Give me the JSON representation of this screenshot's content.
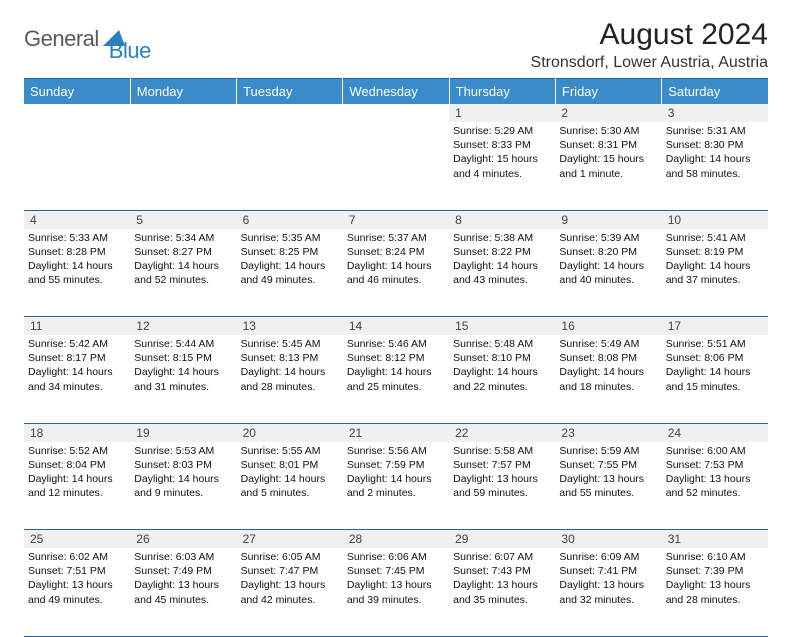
{
  "logo": {
    "general": "General",
    "blue": "Blue"
  },
  "title": "August 2024",
  "location": "Stronsdorf, Lower Austria, Austria",
  "colors": {
    "header_bg": "#3a8bc9",
    "header_text": "#ffffff",
    "border": "#2860a0",
    "daynum_bg": "#eef0f2",
    "logo_gray": "#5a5a5a",
    "logo_blue": "#2d7fc1"
  },
  "days_of_week": [
    "Sunday",
    "Monday",
    "Tuesday",
    "Wednesday",
    "Thursday",
    "Friday",
    "Saturday"
  ],
  "weeks": [
    [
      null,
      null,
      null,
      null,
      {
        "n": "1",
        "sr": "5:29 AM",
        "ss": "8:33 PM",
        "dl": "15 hours and 4 minutes."
      },
      {
        "n": "2",
        "sr": "5:30 AM",
        "ss": "8:31 PM",
        "dl": "15 hours and 1 minute."
      },
      {
        "n": "3",
        "sr": "5:31 AM",
        "ss": "8:30 PM",
        "dl": "14 hours and 58 minutes."
      }
    ],
    [
      {
        "n": "4",
        "sr": "5:33 AM",
        "ss": "8:28 PM",
        "dl": "14 hours and 55 minutes."
      },
      {
        "n": "5",
        "sr": "5:34 AM",
        "ss": "8:27 PM",
        "dl": "14 hours and 52 minutes."
      },
      {
        "n": "6",
        "sr": "5:35 AM",
        "ss": "8:25 PM",
        "dl": "14 hours and 49 minutes."
      },
      {
        "n": "7",
        "sr": "5:37 AM",
        "ss": "8:24 PM",
        "dl": "14 hours and 46 minutes."
      },
      {
        "n": "8",
        "sr": "5:38 AM",
        "ss": "8:22 PM",
        "dl": "14 hours and 43 minutes."
      },
      {
        "n": "9",
        "sr": "5:39 AM",
        "ss": "8:20 PM",
        "dl": "14 hours and 40 minutes."
      },
      {
        "n": "10",
        "sr": "5:41 AM",
        "ss": "8:19 PM",
        "dl": "14 hours and 37 minutes."
      }
    ],
    [
      {
        "n": "11",
        "sr": "5:42 AM",
        "ss": "8:17 PM",
        "dl": "14 hours and 34 minutes."
      },
      {
        "n": "12",
        "sr": "5:44 AM",
        "ss": "8:15 PM",
        "dl": "14 hours and 31 minutes."
      },
      {
        "n": "13",
        "sr": "5:45 AM",
        "ss": "8:13 PM",
        "dl": "14 hours and 28 minutes."
      },
      {
        "n": "14",
        "sr": "5:46 AM",
        "ss": "8:12 PM",
        "dl": "14 hours and 25 minutes."
      },
      {
        "n": "15",
        "sr": "5:48 AM",
        "ss": "8:10 PM",
        "dl": "14 hours and 22 minutes."
      },
      {
        "n": "16",
        "sr": "5:49 AM",
        "ss": "8:08 PM",
        "dl": "14 hours and 18 minutes."
      },
      {
        "n": "17",
        "sr": "5:51 AM",
        "ss": "8:06 PM",
        "dl": "14 hours and 15 minutes."
      }
    ],
    [
      {
        "n": "18",
        "sr": "5:52 AM",
        "ss": "8:04 PM",
        "dl": "14 hours and 12 minutes."
      },
      {
        "n": "19",
        "sr": "5:53 AM",
        "ss": "8:03 PM",
        "dl": "14 hours and 9 minutes."
      },
      {
        "n": "20",
        "sr": "5:55 AM",
        "ss": "8:01 PM",
        "dl": "14 hours and 5 minutes."
      },
      {
        "n": "21",
        "sr": "5:56 AM",
        "ss": "7:59 PM",
        "dl": "14 hours and 2 minutes."
      },
      {
        "n": "22",
        "sr": "5:58 AM",
        "ss": "7:57 PM",
        "dl": "13 hours and 59 minutes."
      },
      {
        "n": "23",
        "sr": "5:59 AM",
        "ss": "7:55 PM",
        "dl": "13 hours and 55 minutes."
      },
      {
        "n": "24",
        "sr": "6:00 AM",
        "ss": "7:53 PM",
        "dl": "13 hours and 52 minutes."
      }
    ],
    [
      {
        "n": "25",
        "sr": "6:02 AM",
        "ss": "7:51 PM",
        "dl": "13 hours and 49 minutes."
      },
      {
        "n": "26",
        "sr": "6:03 AM",
        "ss": "7:49 PM",
        "dl": "13 hours and 45 minutes."
      },
      {
        "n": "27",
        "sr": "6:05 AM",
        "ss": "7:47 PM",
        "dl": "13 hours and 42 minutes."
      },
      {
        "n": "28",
        "sr": "6:06 AM",
        "ss": "7:45 PM",
        "dl": "13 hours and 39 minutes."
      },
      {
        "n": "29",
        "sr": "6:07 AM",
        "ss": "7:43 PM",
        "dl": "13 hours and 35 minutes."
      },
      {
        "n": "30",
        "sr": "6:09 AM",
        "ss": "7:41 PM",
        "dl": "13 hours and 32 minutes."
      },
      {
        "n": "31",
        "sr": "6:10 AM",
        "ss": "7:39 PM",
        "dl": "13 hours and 28 minutes."
      }
    ]
  ]
}
